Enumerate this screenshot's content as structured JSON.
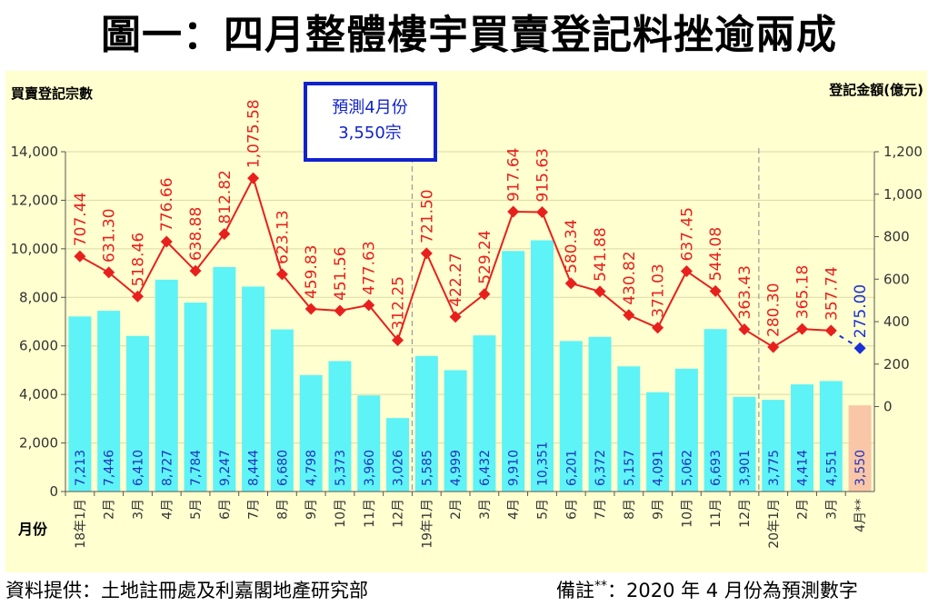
{
  "title": "圖一：四月整體樓宇買賣登記料挫逾兩成",
  "source_text": "資料提供：土地註冊處及利嘉閣地產研究部",
  "note_text": "備註",
  "note_stars": "**",
  "note_colon": "：2020 年 4 月份為預測數字",
  "colors": {
    "bar": "#5ef3f6",
    "bar_forecast": "#f9c6a7",
    "line": "#e8201d",
    "forecast_point": "#1b2fd6",
    "bar_label": "#2233bb",
    "background": "#ffffcf"
  },
  "chart_data": {
    "type": "bar+line",
    "ylabel_left": "買賣登記宗數",
    "ylabel_right": "登記金額(億元)",
    "xlabel": "月份",
    "ylim_left": [
      0,
      14000
    ],
    "ylim_right": [
      -400,
      1200
    ],
    "left_ticks": [
      "0",
      "2,000",
      "4,000",
      "6,000",
      "8,000",
      "10,000",
      "12,000",
      "14,000"
    ],
    "right_ticks": [
      "0",
      "200",
      "400",
      "600",
      "800",
      "1,000",
      "1,200"
    ],
    "categories": [
      "18年1月",
      "2月",
      "3月",
      "4月",
      "5月",
      "6月",
      "7月",
      "8月",
      "9月",
      "10月",
      "11月",
      "12月",
      "19年1月",
      "2月",
      "3月",
      "4月",
      "5月",
      "6月",
      "7月",
      "8月",
      "9月",
      "10月",
      "11月",
      "12月",
      "20年1月",
      "2月",
      "3月",
      "4月**"
    ],
    "series": [
      {
        "name": "買賣登記宗數",
        "axis": "left",
        "values": [
          7213,
          7446,
          6410,
          8727,
          7784,
          9247,
          8444,
          6680,
          4798,
          5373,
          3960,
          3026,
          5585,
          4999,
          6432,
          9910,
          10351,
          6201,
          6372,
          5157,
          4091,
          5062,
          6693,
          3901,
          3775,
          4414,
          4551,
          3550
        ],
        "labels": [
          "7,213",
          "7,446",
          "6,410",
          "8,727",
          "7,784",
          "9,247",
          "8,444",
          "6,680",
          "4,798",
          "5,373",
          "3,960",
          "3,026",
          "5,585",
          "4,999",
          "6,432",
          "9,910",
          "10,351",
          "6,201",
          "6,372",
          "5,157",
          "4,091",
          "5,062",
          "6,693",
          "3,901",
          "3,775",
          "4,414",
          "4,551",
          "3,550"
        ]
      },
      {
        "name": "登記金額(億元)",
        "axis": "right",
        "values": [
          707.44,
          631.3,
          518.46,
          776.66,
          638.88,
          812.82,
          1075.58,
          623.13,
          459.83,
          451.56,
          477.63,
          312.25,
          721.5,
          422.27,
          529.24,
          917.64,
          915.63,
          580.34,
          541.88,
          430.82,
          371.03,
          637.45,
          544.08,
          363.43,
          280.3,
          365.18,
          357.74,
          275.0
        ],
        "labels": [
          "707.44",
          "631.30",
          "518.46",
          "776.66",
          "638.88",
          "812.82",
          "1,075.58",
          "623.13",
          "459.83",
          "451.56",
          "477.63",
          "312.25",
          "721.50",
          "422.27",
          "529.24",
          "917.64",
          "915.63",
          "580.34",
          "541.88",
          "430.82",
          "371.03",
          "637.45",
          "544.08",
          "363.43",
          "280.30",
          "365.18",
          "357.74",
          "275.00"
        ]
      }
    ],
    "forecast_index": 27,
    "forecast_box": {
      "line1": "預測4月份",
      "line2": "3,550宗"
    }
  }
}
